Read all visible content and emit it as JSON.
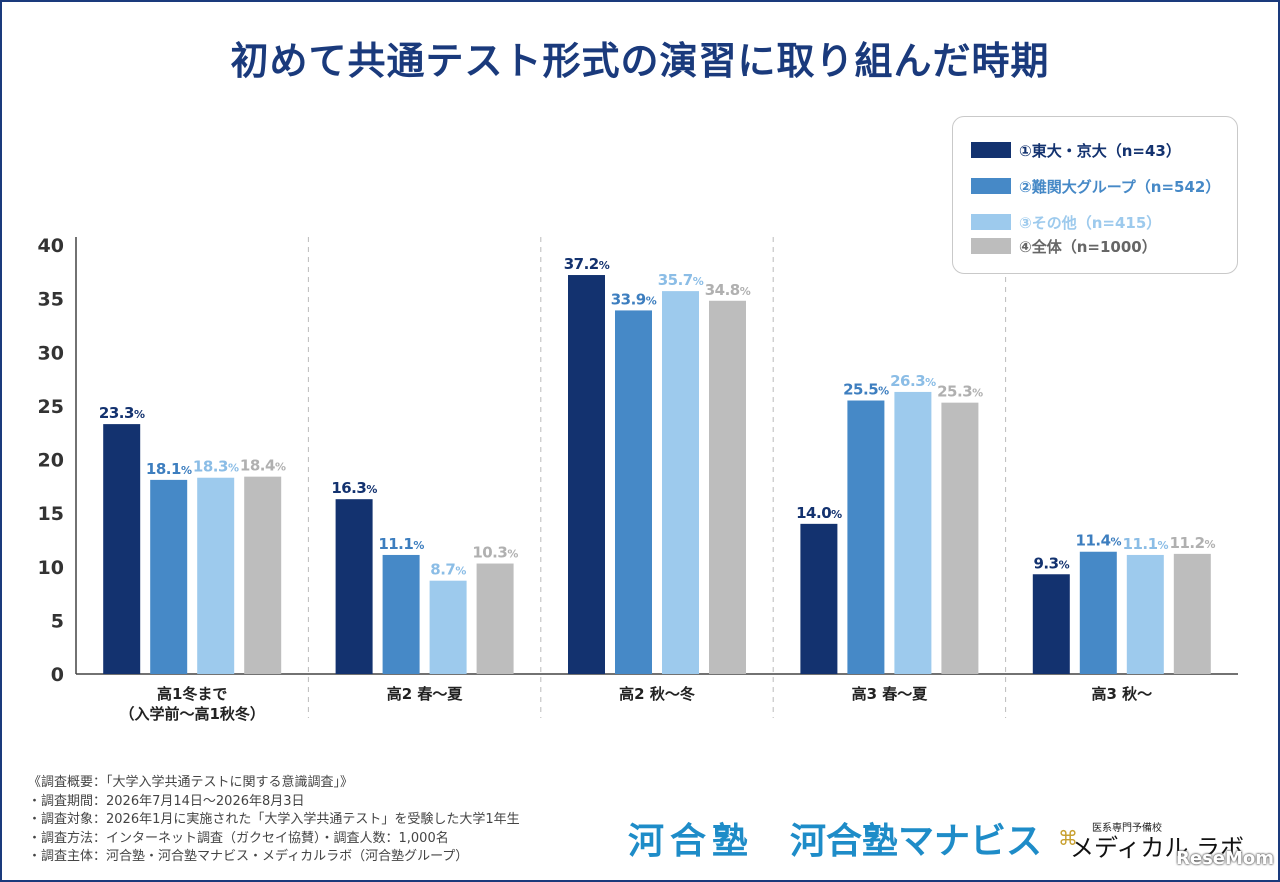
{
  "title": "初めて共通テスト形式の演習に取り組んだ時期",
  "legend": [
    {
      "label": "①東大・京大（n=43）",
      "color": "#13326f"
    },
    {
      "label": "②難関大グループ（n=542）",
      "color": "#4689c7"
    },
    {
      "label": "③その他（n=415）",
      "color": "#9dcaed"
    },
    {
      "label": "④全体（n=1000）",
      "color": "#bdbdbd"
    }
  ],
  "chart_data": {
    "type": "bar",
    "title": "初めて共通テスト形式の演習に取り組んだ時期",
    "xlabel": "",
    "ylabel": "",
    "ylim": [
      0,
      40
    ],
    "yticks": [
      0,
      5,
      10,
      15,
      20,
      25,
      30,
      35,
      40
    ],
    "grid": false,
    "legend_position": "top-right",
    "categories": [
      "高1冬まで\n（入学前〜高1秋冬）",
      "高2 春〜夏",
      "高2 秋〜冬",
      "高3 春〜夏",
      "高3 秋〜"
    ],
    "series": [
      {
        "name": "①東大・京大（n=43）",
        "color": "#13326f",
        "label_color": "#13326f",
        "values": [
          23.3,
          16.3,
          37.2,
          14.0,
          9.3
        ]
      },
      {
        "name": "②難関大グループ（n=542）",
        "color": "#4689c7",
        "label_color": "#3d7ebf",
        "values": [
          18.1,
          11.1,
          33.9,
          25.5,
          11.4
        ]
      },
      {
        "name": "③その他（n=415）",
        "color": "#9dcaed",
        "label_color": "#8bbde6",
        "values": [
          18.3,
          8.7,
          35.7,
          26.3,
          11.1
        ]
      },
      {
        "name": "④全体（n=1000）",
        "color": "#bdbdbd",
        "label_color": "#b0b0b0",
        "values": [
          18.4,
          10.3,
          34.8,
          25.3,
          11.2
        ]
      }
    ],
    "unit": "%"
  },
  "footnote": [
    "《調査概要：「大学入学共通テストに関する意識調査」》",
    "・調査期間：2026年7月14日〜2026年8月3日",
    "・調査対象：2026年1月に実施された「大学入学共通テスト」を受験した大学1年生",
    "・調査方法：インターネット調査（ガクセイ協賛）・調査人数：1,000名",
    "・調査主体：河合塾・河合塾マナビス・メディカルラボ（河合塾グループ）"
  ],
  "logos": {
    "kawaijuku": "河合塾",
    "manabis": "河合塾マナビス",
    "medical_small": "医系専門予備校",
    "medical": "メディカル ラボ",
    "watermark": "ReseMom"
  }
}
